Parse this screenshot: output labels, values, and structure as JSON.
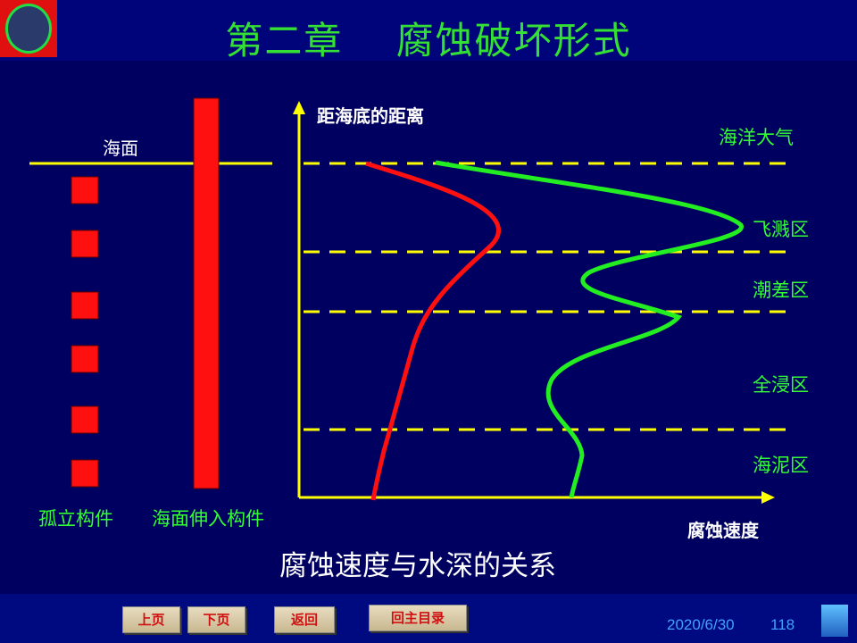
{
  "header": {
    "title": "第二章　 腐蚀破坏形式"
  },
  "diagram": {
    "sea_surface": "海面",
    "y_axis_label": "距海底的距离",
    "x_axis_label": "腐蚀速度",
    "zones": [
      "海洋大气",
      "飞溅区",
      "潮差区",
      "全浸区",
      "海泥区"
    ],
    "left_labels": [
      "孤立构件",
      "海面伸入构件"
    ],
    "caption": "腐蚀速度与水深的关系",
    "colors": {
      "red_curve": "#ff1010",
      "green_curve": "#22ee22",
      "axis": "#ffff00"
    }
  },
  "footer": {
    "buttons": [
      "上页",
      "下页",
      "返回",
      "回主目录"
    ],
    "date": "2020/6/30",
    "page": "118"
  }
}
